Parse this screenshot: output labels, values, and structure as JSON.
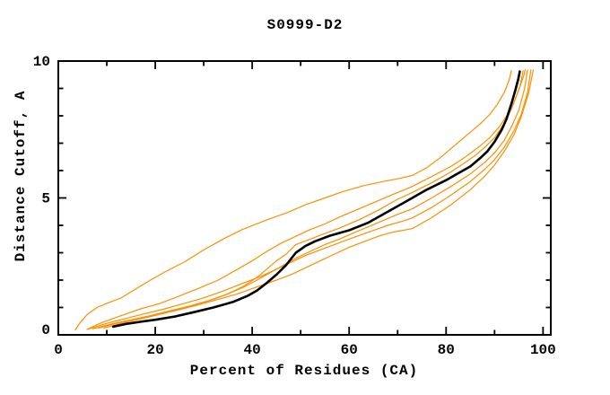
{
  "page": {
    "background_color": "#ffffff",
    "text_color": "#000000"
  },
  "chart_data": {
    "type": "line",
    "title": "S0999-D2",
    "xlabel": "Percent of Residues (CA)",
    "ylabel": "Distance Cutoff, A",
    "xlim": [
      0,
      101.6
    ],
    "ylim": [
      0,
      10
    ],
    "grid": false,
    "legend": "none",
    "x_major_ticks": [
      0,
      20,
      40,
      60,
      80,
      100
    ],
    "x_major_tick_labels": [
      "0",
      "20",
      "40",
      "60",
      "80",
      "100"
    ],
    "x_minor_ticks": [
      10,
      30,
      50,
      70,
      90
    ],
    "y_major_ticks": [
      0,
      5,
      10
    ],
    "y_major_tick_labels": [
      "0",
      "5",
      "10"
    ],
    "y_minor_ticks": [
      1,
      2,
      3,
      4,
      6,
      7,
      8,
      9
    ],
    "colors": {
      "model_orange": "#ff8f00",
      "reference_black": "#000000"
    },
    "series": [
      {
        "name": "orange-curve-1",
        "color": "#ff8f00",
        "width": 1.2,
        "points": [
          [
            3.5,
            0.18
          ],
          [
            4.5,
            0.45
          ],
          [
            6,
            0.75
          ],
          [
            8,
            1.0
          ],
          [
            10,
            1.15
          ],
          [
            13,
            1.35
          ],
          [
            16,
            1.68
          ],
          [
            19,
            2.0
          ],
          [
            22,
            2.3
          ],
          [
            26,
            2.66
          ],
          [
            30,
            3.1
          ],
          [
            34,
            3.5
          ],
          [
            38,
            3.85
          ],
          [
            43,
            4.2
          ],
          [
            47,
            4.45
          ],
          [
            51,
            4.75
          ],
          [
            55,
            5.0
          ],
          [
            59,
            5.25
          ],
          [
            63,
            5.45
          ],
          [
            67,
            5.6
          ],
          [
            70,
            5.7
          ],
          [
            73,
            5.82
          ],
          [
            76,
            6.1
          ],
          [
            79,
            6.5
          ],
          [
            81,
            6.8
          ],
          [
            83,
            7.1
          ],
          [
            85,
            7.4
          ],
          [
            87,
            7.7
          ],
          [
            89,
            8.05
          ],
          [
            90.5,
            8.4
          ],
          [
            92,
            8.85
          ],
          [
            93,
            9.3
          ],
          [
            93.5,
            9.65
          ]
        ]
      },
      {
        "name": "orange-curve-2",
        "color": "#ff8f00",
        "width": 1.2,
        "points": [
          [
            5.9,
            0.2
          ],
          [
            9,
            0.45
          ],
          [
            13,
            0.7
          ],
          [
            17,
            0.95
          ],
          [
            21,
            1.15
          ],
          [
            25,
            1.42
          ],
          [
            29,
            1.7
          ],
          [
            33,
            2.0
          ],
          [
            37,
            2.4
          ],
          [
            40,
            2.7
          ],
          [
            43,
            3.05
          ],
          [
            46,
            3.35
          ],
          [
            49,
            3.6
          ],
          [
            52,
            3.85
          ],
          [
            55,
            4.05
          ],
          [
            58,
            4.3
          ],
          [
            62,
            4.6
          ],
          [
            66,
            4.9
          ],
          [
            70,
            5.2
          ],
          [
            73,
            5.42
          ],
          [
            77,
            5.78
          ],
          [
            81,
            6.15
          ],
          [
            84,
            6.5
          ],
          [
            87,
            6.9
          ],
          [
            89,
            7.2
          ],
          [
            91,
            7.6
          ],
          [
            92.5,
            8.0
          ],
          [
            94,
            8.5
          ],
          [
            95.2,
            9.05
          ],
          [
            95.9,
            9.65
          ]
        ]
      },
      {
        "name": "orange-curve-3",
        "color": "#ff8f00",
        "width": 1.2,
        "points": [
          [
            8.3,
            0.25
          ],
          [
            12,
            0.42
          ],
          [
            16,
            0.58
          ],
          [
            20,
            0.72
          ],
          [
            24,
            0.9
          ],
          [
            28,
            1.08
          ],
          [
            32,
            1.3
          ],
          [
            35,
            1.5
          ],
          [
            38,
            1.75
          ],
          [
            41,
            2.1
          ],
          [
            43,
            2.4
          ],
          [
            45,
            2.7
          ],
          [
            47,
            2.95
          ],
          [
            49,
            3.3
          ],
          [
            52,
            3.5
          ],
          [
            55,
            3.7
          ],
          [
            58,
            3.9
          ],
          [
            62,
            4.2
          ],
          [
            66,
            4.55
          ],
          [
            70,
            4.95
          ],
          [
            73,
            5.2
          ],
          [
            77,
            5.55
          ],
          [
            81,
            5.95
          ],
          [
            84,
            6.3
          ],
          [
            86,
            6.55
          ],
          [
            88,
            6.85
          ],
          [
            90,
            7.2
          ],
          [
            92,
            7.72
          ],
          [
            93.5,
            8.25
          ],
          [
            95,
            8.95
          ],
          [
            96,
            9.45
          ],
          [
            96.3,
            9.68
          ]
        ]
      },
      {
        "name": "orange-curve-4",
        "color": "#ff8f00",
        "width": 1.2,
        "points": [
          [
            7.1,
            0.22
          ],
          [
            11,
            0.4
          ],
          [
            15,
            0.55
          ],
          [
            19,
            0.7
          ],
          [
            23,
            0.88
          ],
          [
            27,
            1.05
          ],
          [
            31,
            1.25
          ],
          [
            35,
            1.5
          ],
          [
            38,
            1.72
          ],
          [
            41,
            2.0
          ],
          [
            44,
            2.3
          ],
          [
            47,
            2.6
          ],
          [
            49,
            2.8
          ],
          [
            52,
            3.05
          ],
          [
            55,
            3.3
          ],
          [
            58,
            3.5
          ],
          [
            62,
            3.8
          ],
          [
            66,
            4.1
          ],
          [
            70,
            4.4
          ],
          [
            73,
            4.6
          ],
          [
            77,
            5.0
          ],
          [
            81,
            5.42
          ],
          [
            85,
            5.88
          ],
          [
            88,
            6.3
          ],
          [
            90,
            6.65
          ],
          [
            92,
            7.1
          ],
          [
            93.5,
            7.6
          ],
          [
            95,
            8.2
          ],
          [
            96.2,
            9.0
          ],
          [
            96.8,
            9.68
          ]
        ]
      },
      {
        "name": "orange-curve-5",
        "color": "#ff8f00",
        "width": 1.2,
        "points": [
          [
            6,
            0.2
          ],
          [
            10,
            0.42
          ],
          [
            14,
            0.6
          ],
          [
            18,
            0.78
          ],
          [
            22,
            0.95
          ],
          [
            26,
            1.15
          ],
          [
            30,
            1.35
          ],
          [
            34,
            1.6
          ],
          [
            38,
            1.88
          ],
          [
            42,
            2.15
          ],
          [
            45,
            2.4
          ],
          [
            48,
            2.65
          ],
          [
            51,
            2.9
          ],
          [
            54,
            3.1
          ],
          [
            57,
            3.3
          ],
          [
            60,
            3.5
          ],
          [
            64,
            3.75
          ],
          [
            68,
            4.0
          ],
          [
            71,
            4.15
          ],
          [
            73,
            4.27
          ],
          [
            77,
            4.65
          ],
          [
            81,
            5.1
          ],
          [
            85,
            5.6
          ],
          [
            88,
            6.05
          ],
          [
            90,
            6.4
          ],
          [
            92,
            6.85
          ],
          [
            94,
            7.45
          ],
          [
            95.5,
            8.05
          ],
          [
            96.8,
            8.85
          ],
          [
            97.5,
            9.68
          ]
        ]
      },
      {
        "name": "orange-curve-6",
        "color": "#ff8f00",
        "width": 1.2,
        "points": [
          [
            9.4,
            0.25
          ],
          [
            13,
            0.42
          ],
          [
            17,
            0.58
          ],
          [
            21,
            0.75
          ],
          [
            25,
            0.92
          ],
          [
            29,
            1.1
          ],
          [
            33,
            1.3
          ],
          [
            37,
            1.5
          ],
          [
            41,
            1.75
          ],
          [
            45,
            2.0
          ],
          [
            48,
            2.2
          ],
          [
            51,
            2.45
          ],
          [
            54,
            2.7
          ],
          [
            57,
            2.95
          ],
          [
            60,
            3.2
          ],
          [
            63,
            3.4
          ],
          [
            66,
            3.6
          ],
          [
            69,
            3.75
          ],
          [
            73,
            3.88
          ],
          [
            77,
            4.28
          ],
          [
            81,
            4.75
          ],
          [
            85,
            5.3
          ],
          [
            88,
            5.8
          ],
          [
            90,
            6.2
          ],
          [
            92,
            6.7
          ],
          [
            94,
            7.3
          ],
          [
            95.5,
            7.95
          ],
          [
            97,
            8.8
          ],
          [
            98,
            9.68
          ]
        ]
      },
      {
        "name": "black-reference-curve",
        "color": "#000000",
        "width": 2.6,
        "points": [
          [
            11.3,
            0.3
          ],
          [
            14,
            0.4
          ],
          [
            17,
            0.48
          ],
          [
            20,
            0.55
          ],
          [
            24,
            0.67
          ],
          [
            28,
            0.83
          ],
          [
            32,
            1.0
          ],
          [
            36,
            1.2
          ],
          [
            39,
            1.42
          ],
          [
            41,
            1.62
          ],
          [
            43,
            1.9
          ],
          [
            45,
            2.2
          ],
          [
            47,
            2.55
          ],
          [
            49,
            3.0
          ],
          [
            51,
            3.25
          ],
          [
            53,
            3.42
          ],
          [
            56,
            3.62
          ],
          [
            60,
            3.82
          ],
          [
            64,
            4.1
          ],
          [
            68,
            4.5
          ],
          [
            71,
            4.8
          ],
          [
            73,
            5.0
          ],
          [
            76,
            5.3
          ],
          [
            80,
            5.65
          ],
          [
            83,
            5.95
          ],
          [
            85,
            6.15
          ],
          [
            87,
            6.45
          ],
          [
            88.5,
            6.7
          ],
          [
            90,
            7.05
          ],
          [
            91.5,
            7.5
          ],
          [
            92.5,
            7.9
          ],
          [
            93.5,
            8.45
          ],
          [
            94.3,
            8.95
          ],
          [
            94.9,
            9.35
          ],
          [
            95.2,
            9.62
          ]
        ]
      }
    ]
  }
}
